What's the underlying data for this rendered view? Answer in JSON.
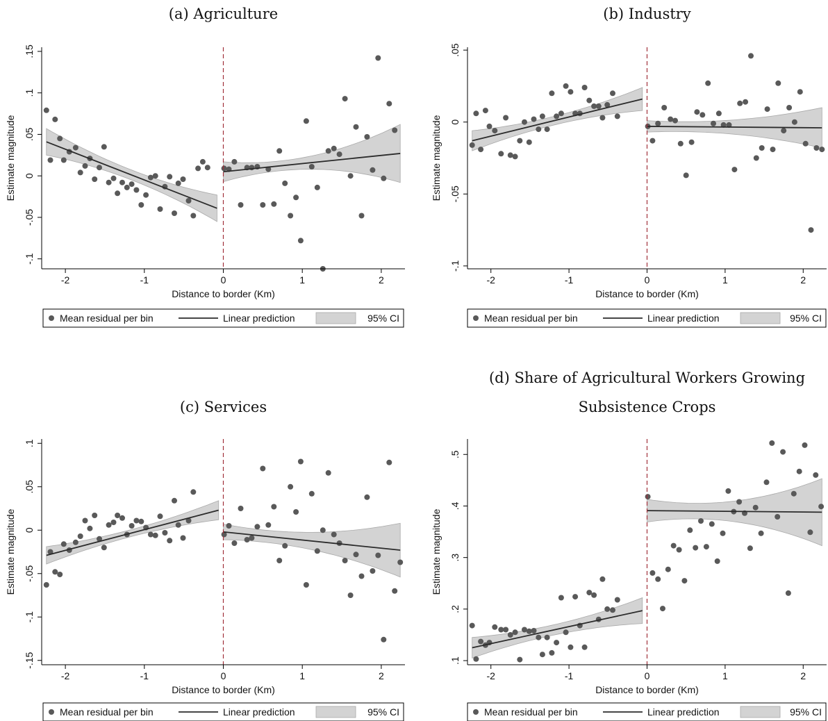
{
  "colors": {
    "point": "#595959",
    "line": "#2b2b2b",
    "ci_fill": "#d3d3d3",
    "ci_stroke": "#a9a9a9",
    "border_line": "#a0303a",
    "axis": "#000000"
  },
  "legend": {
    "points_label": "Mean residual per bin",
    "line_label": "Linear prediction",
    "ci_label": "95% CI"
  },
  "chart_data": [
    {
      "type": "scatter",
      "title": "(a) Agriculture",
      "xlabel": "Distance to border (Km)",
      "ylabel": "Estimate magnitude",
      "xlim": [
        -2.3,
        2.3
      ],
      "ylim": [
        -1.12,
        1.55
      ],
      "y_scale_label": 10,
      "xticks": [
        -2,
        -1,
        0,
        1,
        2
      ],
      "yticks": [
        -1.0,
        -0.5,
        0,
        0.5,
        1.0,
        1.5
      ],
      "ytick_labels": [
        "-.1",
        "-.05",
        "0",
        ".05",
        ".1",
        ".15"
      ],
      "cutoff": 0,
      "points": [
        [
          -2.24,
          0.79
        ],
        [
          -2.19,
          0.19
        ],
        [
          -2.13,
          0.68
        ],
        [
          -2.07,
          0.45
        ],
        [
          -2.02,
          0.19
        ],
        [
          -1.95,
          0.29
        ],
        [
          -1.87,
          0.34
        ],
        [
          -1.81,
          0.04
        ],
        [
          -1.75,
          0.12
        ],
        [
          -1.69,
          0.21
        ],
        [
          -1.63,
          -0.04
        ],
        [
          -1.57,
          0.1
        ],
        [
          -1.51,
          0.35
        ],
        [
          -1.45,
          -0.08
        ],
        [
          -1.39,
          -0.03
        ],
        [
          -1.34,
          -0.21
        ],
        [
          -1.28,
          -0.08
        ],
        [
          -1.22,
          -0.14
        ],
        [
          -1.16,
          -0.1
        ],
        [
          -1.1,
          -0.17
        ],
        [
          -1.04,
          -0.35
        ],
        [
          -0.98,
          -0.23
        ],
        [
          -0.92,
          -0.02
        ],
        [
          -0.86,
          0.0
        ],
        [
          -0.8,
          -0.4
        ],
        [
          -0.74,
          -0.13
        ],
        [
          -0.68,
          -0.01
        ],
        [
          -0.62,
          -0.45
        ],
        [
          -0.57,
          -0.09
        ],
        [
          -0.51,
          -0.04
        ],
        [
          -0.44,
          -0.3
        ],
        [
          -0.38,
          -0.48
        ],
        [
          -0.32,
          0.09
        ],
        [
          -0.26,
          0.17
        ],
        [
          -0.2,
          0.1
        ],
        [
          0.01,
          0.09
        ],
        [
          0.07,
          0.08
        ],
        [
          0.14,
          0.17
        ],
        [
          0.22,
          -0.35
        ],
        [
          0.3,
          0.1
        ],
        [
          0.36,
          0.1
        ],
        [
          0.43,
          0.11
        ],
        [
          0.5,
          -0.35
        ],
        [
          0.57,
          0.08
        ],
        [
          0.64,
          -0.34
        ],
        [
          0.71,
          0.3
        ],
        [
          0.78,
          -0.09
        ],
        [
          0.85,
          -0.48
        ],
        [
          0.92,
          -0.26
        ],
        [
          0.98,
          -0.78
        ],
        [
          1.05,
          0.66
        ],
        [
          1.12,
          0.11
        ],
        [
          1.19,
          -0.14
        ],
        [
          1.26,
          -1.12
        ],
        [
          1.33,
          0.3
        ],
        [
          1.4,
          0.33
        ],
        [
          1.47,
          0.26
        ],
        [
          1.54,
          0.93
        ],
        [
          1.61,
          0.0
        ],
        [
          1.68,
          0.59
        ],
        [
          1.75,
          -0.48
        ],
        [
          1.82,
          0.47
        ],
        [
          1.89,
          0.07
        ],
        [
          1.96,
          1.42
        ],
        [
          2.03,
          -0.03
        ],
        [
          2.1,
          0.87
        ],
        [
          2.17,
          0.55
        ]
      ],
      "fit_left": {
        "x": [
          -2.24,
          -0.08
        ],
        "y": [
          0.41,
          -0.39
        ],
        "ci_halfwidth": [
          0.16,
          0.06,
          0.16
        ]
      },
      "fit_right": {
        "x": [
          0.0,
          2.24
        ],
        "y": [
          0.05,
          0.27
        ],
        "ci_halfwidth": [
          0.12,
          0.08,
          0.35
        ]
      }
    },
    {
      "type": "scatter",
      "title": "(b) Industry",
      "xlabel": "Distance to border (Km)",
      "ylabel": "Estimate magnitude",
      "xlim": [
        -2.3,
        2.3
      ],
      "ylim": [
        -1.02,
        0.52
      ],
      "y_scale_label": 20,
      "xticks": [
        -2,
        -1,
        0,
        1,
        2
      ],
      "yticks": [
        -1.0,
        -0.5,
        0,
        0.5
      ],
      "ytick_labels": [
        "-.1",
        "-.05",
        "0",
        ".05"
      ],
      "cutoff": 0,
      "points": [
        [
          -2.24,
          -0.16
        ],
        [
          -2.19,
          0.06
        ],
        [
          -2.13,
          -0.19
        ],
        [
          -2.07,
          0.08
        ],
        [
          -2.02,
          -0.03
        ],
        [
          -1.95,
          -0.06
        ],
        [
          -1.87,
          -0.22
        ],
        [
          -1.81,
          0.03
        ],
        [
          -1.75,
          -0.23
        ],
        [
          -1.69,
          -0.24
        ],
        [
          -1.63,
          -0.13
        ],
        [
          -1.57,
          0.0
        ],
        [
          -1.51,
          -0.14
        ],
        [
          -1.45,
          0.02
        ],
        [
          -1.39,
          -0.05
        ],
        [
          -1.34,
          0.04
        ],
        [
          -1.28,
          -0.05
        ],
        [
          -1.22,
          0.2
        ],
        [
          -1.16,
          0.04
        ],
        [
          -1.1,
          0.06
        ],
        [
          -1.04,
          0.25
        ],
        [
          -0.98,
          0.21
        ],
        [
          -0.92,
          0.06
        ],
        [
          -0.86,
          0.06
        ],
        [
          -0.8,
          0.24
        ],
        [
          -0.74,
          0.15
        ],
        [
          -0.68,
          0.11
        ],
        [
          -0.62,
          0.11
        ],
        [
          -0.57,
          0.03
        ],
        [
          -0.51,
          0.12
        ],
        [
          -0.44,
          0.2
        ],
        [
          -0.38,
          0.04
        ],
        [
          0.01,
          -0.03
        ],
        [
          0.07,
          -0.13
        ],
        [
          0.14,
          -0.01
        ],
        [
          0.22,
          0.1
        ],
        [
          0.3,
          0.02
        ],
        [
          0.36,
          0.01
        ],
        [
          0.43,
          -0.15
        ],
        [
          0.5,
          -0.37
        ],
        [
          0.57,
          -0.14
        ],
        [
          0.64,
          0.07
        ],
        [
          0.71,
          0.05
        ],
        [
          0.78,
          0.27
        ],
        [
          0.85,
          -0.01
        ],
        [
          0.92,
          0.06
        ],
        [
          0.98,
          -0.02
        ],
        [
          1.05,
          -0.02
        ],
        [
          1.12,
          -0.33
        ],
        [
          1.19,
          0.13
        ],
        [
          1.26,
          0.14
        ],
        [
          1.33,
          0.46
        ],
        [
          1.4,
          -0.25
        ],
        [
          1.47,
          -0.18
        ],
        [
          1.54,
          0.09
        ],
        [
          1.61,
          -0.19
        ],
        [
          1.68,
          0.27
        ],
        [
          1.75,
          -0.06
        ],
        [
          1.82,
          0.1
        ],
        [
          1.89,
          0.0
        ],
        [
          1.96,
          0.21
        ],
        [
          2.03,
          -0.15
        ],
        [
          2.1,
          -0.75
        ],
        [
          2.17,
          -0.18
        ],
        [
          2.24,
          -0.19
        ]
      ],
      "fit_left": {
        "x": [
          -2.24,
          -0.06
        ],
        "y": [
          -0.13,
          0.16
        ],
        "ci_halfwidth": [
          0.07,
          0.03,
          0.08
        ]
      },
      "fit_right": {
        "x": [
          0.0,
          2.24
        ],
        "y": [
          -0.03,
          -0.04
        ],
        "ci_halfwidth": [
          0.04,
          0.05,
          0.14
        ]
      }
    },
    {
      "type": "scatter",
      "title": "(c) Services",
      "xlabel": "Distance to border (Km)",
      "ylabel": "Estimate magnitude",
      "xlim": [
        -2.3,
        2.3
      ],
      "ylim": [
        -1.55,
        1.05
      ],
      "y_scale_label": 10,
      "xticks": [
        -2,
        -1,
        0,
        1,
        2
      ],
      "yticks": [
        -1.5,
        -1.0,
        -0.5,
        0,
        0.5,
        1.0
      ],
      "ytick_labels": [
        "-.15",
        "-.1",
        "-.05",
        "0",
        ".05",
        ".1"
      ],
      "cutoff": 0,
      "points": [
        [
          -2.24,
          -0.63
        ],
        [
          -2.19,
          -0.25
        ],
        [
          -2.13,
          -0.48
        ],
        [
          -2.07,
          -0.51
        ],
        [
          -2.02,
          -0.16
        ],
        [
          -1.95,
          -0.23
        ],
        [
          -1.87,
          -0.14
        ],
        [
          -1.81,
          -0.07
        ],
        [
          -1.75,
          0.11
        ],
        [
          -1.69,
          0.02
        ],
        [
          -1.63,
          0.17
        ],
        [
          -1.57,
          -0.1
        ],
        [
          -1.51,
          -0.2
        ],
        [
          -1.45,
          0.06
        ],
        [
          -1.39,
          0.09
        ],
        [
          -1.34,
          0.17
        ],
        [
          -1.28,
          0.14
        ],
        [
          -1.22,
          -0.05
        ],
        [
          -1.16,
          0.05
        ],
        [
          -1.1,
          0.11
        ],
        [
          -1.04,
          0.1
        ],
        [
          -0.98,
          0.03
        ],
        [
          -0.92,
          -0.05
        ],
        [
          -0.86,
          -0.06
        ],
        [
          -0.8,
          0.16
        ],
        [
          -0.74,
          -0.03
        ],
        [
          -0.68,
          -0.12
        ],
        [
          -0.62,
          0.34
        ],
        [
          -0.57,
          0.06
        ],
        [
          -0.51,
          -0.09
        ],
        [
          -0.44,
          0.11
        ],
        [
          -0.38,
          0.44
        ],
        [
          0.01,
          -0.05
        ],
        [
          0.07,
          0.05
        ],
        [
          0.14,
          -0.15
        ],
        [
          0.22,
          0.25
        ],
        [
          0.3,
          -0.11
        ],
        [
          0.36,
          -0.09
        ],
        [
          0.43,
          0.04
        ],
        [
          0.5,
          0.71
        ],
        [
          0.57,
          0.06
        ],
        [
          0.64,
          0.27
        ],
        [
          0.71,
          -0.35
        ],
        [
          0.78,
          -0.18
        ],
        [
          0.85,
          0.5
        ],
        [
          0.92,
          0.21
        ],
        [
          0.98,
          0.79
        ],
        [
          1.05,
          -0.63
        ],
        [
          1.12,
          0.42
        ],
        [
          1.19,
          -0.24
        ],
        [
          1.26,
          0.0
        ],
        [
          1.33,
          0.66
        ],
        [
          1.4,
          -0.05
        ],
        [
          1.47,
          -0.15
        ],
        [
          1.54,
          -0.35
        ],
        [
          1.61,
          -0.75
        ],
        [
          1.68,
          -0.28
        ],
        [
          1.75,
          -0.53
        ],
        [
          1.82,
          0.38
        ],
        [
          1.89,
          -0.47
        ],
        [
          1.96,
          -0.29
        ],
        [
          2.03,
          -1.26
        ],
        [
          2.1,
          0.78
        ],
        [
          2.17,
          -0.7
        ],
        [
          2.24,
          -0.37
        ]
      ],
      "fit_left": {
        "x": [
          -2.24,
          -0.06
        ],
        "y": [
          -0.29,
          0.23
        ],
        "ci_halfwidth": [
          0.1,
          0.04,
          0.11
        ]
      },
      "fit_right": {
        "x": [
          0.0,
          2.24
        ],
        "y": [
          -0.02,
          -0.23
        ],
        "ci_halfwidth": [
          0.09,
          0.1,
          0.31
        ]
      }
    },
    {
      "type": "scatter",
      "title": "(d) Share of Agricultural Workers Growing Subsistence Crops",
      "xlabel": "Distance to border (Km)",
      "ylabel": "Estimate magnitude",
      "xlim": [
        -2.3,
        2.3
      ],
      "ylim": [
        0.092,
        0.53
      ],
      "y_scale_label": 1,
      "xticks": [
        -2,
        -1,
        0,
        1,
        2
      ],
      "yticks": [
        0.1,
        0.2,
        0.3,
        0.4,
        0.5
      ],
      "ytick_labels": [
        ".1",
        ".2",
        ".3",
        ".4",
        ".5"
      ],
      "cutoff": 0,
      "points": [
        [
          -2.24,
          0.168
        ],
        [
          -2.19,
          0.103
        ],
        [
          -2.13,
          0.137
        ],
        [
          -2.07,
          0.13
        ],
        [
          -2.02,
          0.135
        ],
        [
          -1.95,
          0.165
        ],
        [
          -1.87,
          0.16
        ],
        [
          -1.81,
          0.16
        ],
        [
          -1.75,
          0.15
        ],
        [
          -1.69,
          0.155
        ],
        [
          -1.63,
          0.102
        ],
        [
          -1.57,
          0.16
        ],
        [
          -1.51,
          0.157
        ],
        [
          -1.45,
          0.158
        ],
        [
          -1.39,
          0.145
        ],
        [
          -1.34,
          0.112
        ],
        [
          -1.28,
          0.145
        ],
        [
          -1.22,
          0.115
        ],
        [
          -1.16,
          0.135
        ],
        [
          -1.1,
          0.222
        ],
        [
          -1.04,
          0.155
        ],
        [
          -0.98,
          0.126
        ],
        [
          -0.92,
          0.224
        ],
        [
          -0.86,
          0.168
        ],
        [
          -0.8,
          0.126
        ],
        [
          -0.74,
          0.232
        ],
        [
          -0.68,
          0.227
        ],
        [
          -0.62,
          0.18
        ],
        [
          -0.57,
          0.258
        ],
        [
          -0.51,
          0.2
        ],
        [
          -0.44,
          0.198
        ],
        [
          -0.38,
          0.218
        ],
        [
          0.01,
          0.418
        ],
        [
          0.07,
          0.27
        ],
        [
          0.14,
          0.258
        ],
        [
          0.2,
          0.201
        ],
        [
          0.27,
          0.277
        ],
        [
          0.34,
          0.323
        ],
        [
          0.41,
          0.315
        ],
        [
          0.48,
          0.255
        ],
        [
          0.55,
          0.353
        ],
        [
          0.62,
          0.319
        ],
        [
          0.69,
          0.371
        ],
        [
          0.76,
          0.321
        ],
        [
          0.83,
          0.365
        ],
        [
          0.9,
          0.293
        ],
        [
          0.97,
          0.347
        ],
        [
          1.04,
          0.429
        ],
        [
          1.11,
          0.389
        ],
        [
          1.18,
          0.408
        ],
        [
          1.25,
          0.386
        ],
        [
          1.32,
          0.318
        ],
        [
          1.39,
          0.397
        ],
        [
          1.46,
          0.347
        ],
        [
          1.53,
          0.446
        ],
        [
          1.6,
          0.522
        ],
        [
          1.67,
          0.379
        ],
        [
          1.74,
          0.505
        ],
        [
          1.81,
          0.231
        ],
        [
          1.88,
          0.424
        ],
        [
          1.95,
          0.467
        ],
        [
          2.02,
          0.518
        ],
        [
          2.09,
          0.349
        ],
        [
          2.16,
          0.46
        ],
        [
          2.23,
          0.399
        ]
      ],
      "fit_left": {
        "x": [
          -2.24,
          -0.06
        ],
        "y": [
          0.125,
          0.197
        ],
        "ci_halfwidth": [
          0.02,
          0.01,
          0.025
        ]
      },
      "fit_right": {
        "x": [
          0.0,
          2.24
        ],
        "y": [
          0.391,
          0.388
        ],
        "ci_halfwidth": [
          0.022,
          0.02,
          0.065
        ]
      }
    }
  ]
}
